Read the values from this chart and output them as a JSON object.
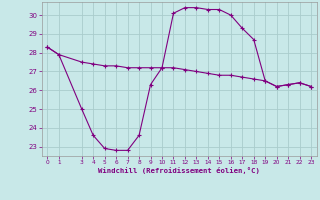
{
  "line1_x": [
    0,
    1,
    3,
    4,
    5,
    6,
    7,
    8,
    9,
    10,
    11,
    12,
    13,
    14,
    15,
    16,
    17,
    18,
    19,
    20,
    21,
    22,
    23
  ],
  "line1_y": [
    28.3,
    27.9,
    25.0,
    23.6,
    22.9,
    22.8,
    22.8,
    23.6,
    26.3,
    27.2,
    30.1,
    30.4,
    30.4,
    30.3,
    30.3,
    30.0,
    29.3,
    28.7,
    26.5,
    26.2,
    26.3,
    26.4,
    26.2
  ],
  "line2_x": [
    0,
    1,
    3,
    4,
    5,
    6,
    7,
    8,
    9,
    10,
    11,
    12,
    13,
    14,
    15,
    16,
    17,
    18,
    19,
    20,
    21,
    22,
    23
  ],
  "line2_y": [
    28.3,
    27.9,
    27.5,
    27.4,
    27.3,
    27.3,
    27.2,
    27.2,
    27.2,
    27.2,
    27.2,
    27.1,
    27.0,
    26.9,
    26.8,
    26.8,
    26.7,
    26.6,
    26.5,
    26.2,
    26.3,
    26.4,
    26.2
  ],
  "color": "#800080",
  "bg_color": "#c8e8e8",
  "grid_color": "#aacccc",
  "xlabel": "Windchill (Refroidissement éolien,°C)",
  "yticks": [
    23,
    24,
    25,
    26,
    27,
    28,
    29,
    30
  ],
  "xticks": [
    0,
    1,
    3,
    4,
    5,
    6,
    7,
    8,
    9,
    10,
    11,
    12,
    13,
    14,
    15,
    16,
    17,
    18,
    19,
    20,
    21,
    22,
    23
  ],
  "xlim": [
    -0.5,
    23.5
  ],
  "ylim": [
    22.5,
    30.7
  ],
  "marker": "+",
  "markersize": 3.5,
  "linewidth": 0.8
}
